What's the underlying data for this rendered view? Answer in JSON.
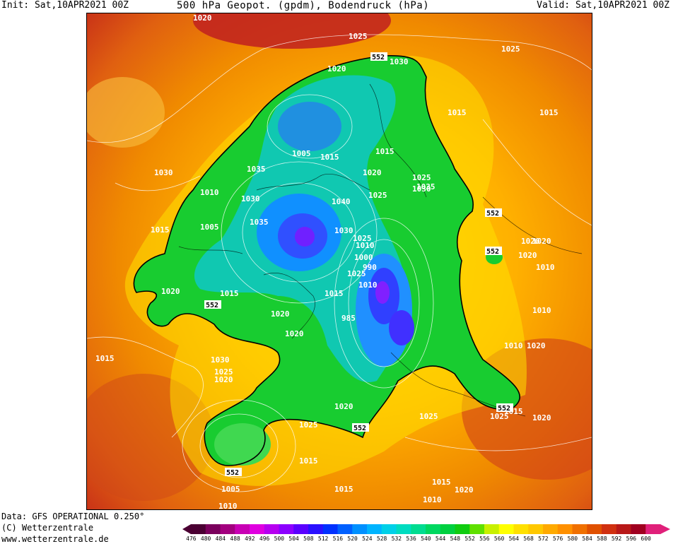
{
  "header": {
    "init": "Init: Sat,10APR2021 00Z",
    "title": "500 hPa Geopot. (gpdm), Bodendruck (hPa)",
    "valid": "Valid: Sat,10APR2021 00Z"
  },
  "footer": {
    "data": "Data: GFS OPERATIONAL 0.250°",
    "copyright": "(C) Wetterzentrale",
    "url": "www.wetterzentrale.de"
  },
  "scale": {
    "values": [
      "476",
      "480",
      "484",
      "488",
      "492",
      "496",
      "500",
      "504",
      "508",
      "512",
      "516",
      "520",
      "524",
      "528",
      "532",
      "536",
      "540",
      "544",
      "548",
      "552",
      "556",
      "560",
      "564",
      "568",
      "572",
      "576",
      "580",
      "584",
      "588",
      "592",
      "596",
      "600"
    ],
    "colors": [
      "#4b0033",
      "#7a005c",
      "#a3007f",
      "#c800b4",
      "#e000e0",
      "#b600f0",
      "#8c00ff",
      "#5a00ff",
      "#2a10ff",
      "#0030ff",
      "#0060ff",
      "#0090ff",
      "#00b4ff",
      "#00d0e8",
      "#00dcc0",
      "#00dc90",
      "#00d860",
      "#00d040",
      "#10cc10",
      "#60e000",
      "#c8f000",
      "#ffff00",
      "#ffe000",
      "#ffc800",
      "#ffaa00",
      "#ff9000",
      "#f07000",
      "#e05000",
      "#d03010",
      "#b81818",
      "#a00020",
      "#e0207a"
    ]
  },
  "map_labels": {
    "isobars": [
      "1020",
      "1025",
      "1030",
      "1020",
      "1025",
      "1015",
      "1015",
      "1005",
      "1015",
      "1015",
      "1020",
      "1030",
      "1035",
      "1025",
      "1010",
      "1030",
      "1040",
      "1025",
      "1030",
      "1035",
      "1015",
      "1035",
      "1005",
      "1020",
      "1030",
      "1025",
      "1020",
      "1010",
      "1000",
      "990",
      "1025",
      "1020",
      "1020",
      "1010",
      "1015",
      "1010",
      "985",
      "1020",
      "1010",
      "1010",
      "1015",
      "1030",
      "1025",
      "1020",
      "1020",
      "1025",
      "1020",
      "1025",
      "1020",
      "1015",
      "1015",
      "1005",
      "1015",
      "1020",
      "1015",
      "1010",
      "1010",
      "1020",
      "1025",
      "1015"
    ],
    "height_552": [
      "552",
      "552",
      "552",
      "552",
      "552",
      "552",
      "552"
    ]
  }
}
